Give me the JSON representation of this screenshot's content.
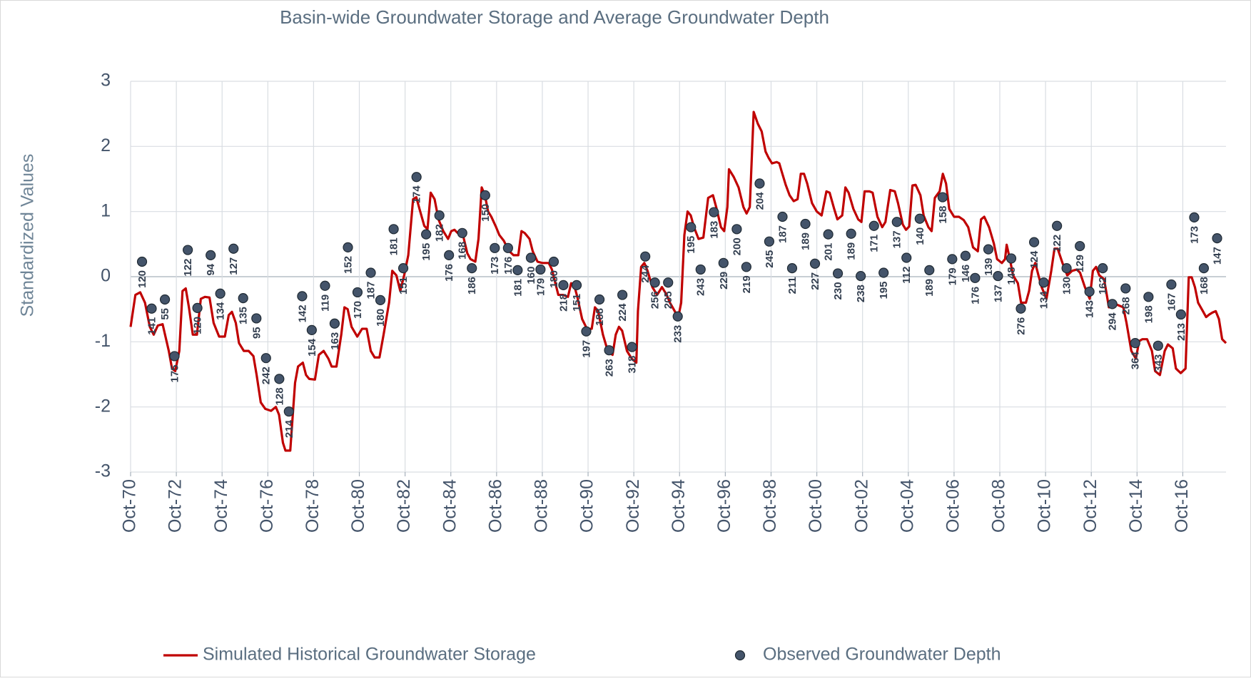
{
  "chart_data": {
    "type": "line",
    "title": "Basin-wide Groundwater Storage and Average Groundwater Depth",
    "y_label": "Standardized Values",
    "xlim": [
      1970.75,
      2018.64
    ],
    "xticks": [
      {
        "value": 1970.75,
        "label": "Oct-70"
      },
      {
        "value": 1972.75,
        "label": "Oct-72"
      },
      {
        "value": 1974.75,
        "label": "Oct-74"
      },
      {
        "value": 1976.75,
        "label": "Oct-76"
      },
      {
        "value": 1978.75,
        "label": "Oct-78"
      },
      {
        "value": 1980.75,
        "label": "Oct-80"
      },
      {
        "value": 1982.75,
        "label": "Oct-82"
      },
      {
        "value": 1984.75,
        "label": "Oct-84"
      },
      {
        "value": 1986.75,
        "label": "Oct-86"
      },
      {
        "value": 1988.75,
        "label": "Oct-88"
      },
      {
        "value": 1990.75,
        "label": "Oct-90"
      },
      {
        "value": 1992.75,
        "label": "Oct-92"
      },
      {
        "value": 1994.75,
        "label": "Oct-94"
      },
      {
        "value": 1996.75,
        "label": "Oct-96"
      },
      {
        "value": 1998.75,
        "label": "Oct-98"
      },
      {
        "value": 2000.75,
        "label": "Oct-00"
      },
      {
        "value": 2002.75,
        "label": "Oct-02"
      },
      {
        "value": 2004.75,
        "label": "Oct-04"
      },
      {
        "value": 2006.75,
        "label": "Oct-06"
      },
      {
        "value": 2008.75,
        "label": "Oct-08"
      },
      {
        "value": 2010.75,
        "label": "Oct-10"
      },
      {
        "value": 2012.75,
        "label": "Oct-12"
      },
      {
        "value": 2014.75,
        "label": "Oct-14"
      },
      {
        "value": 2016.75,
        "label": "Oct-16"
      }
    ],
    "ylim": [
      -3,
      3
    ],
    "yticks": [
      -3,
      -2,
      -1,
      0,
      1,
      2,
      3
    ],
    "grid": true,
    "legend": "bottom",
    "series": [
      {
        "name": "Simulated Historical Groundwater Storage",
        "type": "line",
        "color": "#c00000",
        "x": [
          1970.75,
          1970.96,
          1971.17,
          1971.38,
          1971.59,
          1971.76,
          1971.94,
          1972.15,
          1972.42,
          1972.56,
          1972.7,
          1972.88,
          1973.02,
          1973.16,
          1973.3,
          1973.47,
          1973.65,
          1973.82,
          1974.0,
          1974.2,
          1974.38,
          1974.62,
          1974.87,
          1975.04,
          1975.18,
          1975.35,
          1975.49,
          1975.7,
          1975.91,
          1976.12,
          1976.26,
          1976.44,
          1976.64,
          1976.89,
          1977.1,
          1977.24,
          1977.41,
          1977.52,
          1977.73,
          1977.94,
          1978.07,
          1978.28,
          1978.42,
          1978.56,
          1978.81,
          1978.98,
          1979.19,
          1979.4,
          1979.54,
          1979.75,
          1979.96,
          1980.1,
          1980.24,
          1980.41,
          1980.66,
          1980.87,
          1981.07,
          1981.25,
          1981.42,
          1981.63,
          1981.81,
          1982.05,
          1982.19,
          1982.37,
          1982.54,
          1982.71,
          1982.89,
          1983.1,
          1983.24,
          1983.38,
          1983.59,
          1983.73,
          1983.87,
          1984.04,
          1984.21,
          1984.42,
          1984.63,
          1984.77,
          1984.91,
          1985.05,
          1985.26,
          1985.47,
          1985.61,
          1985.82,
          1985.96,
          1986.1,
          1986.24,
          1986.38,
          1986.52,
          1986.73,
          1986.87,
          1987.07,
          1987.28,
          1987.49,
          1987.7,
          1987.84,
          1987.98,
          1988.19,
          1988.33,
          1988.54,
          1988.75,
          1989.03,
          1989.17,
          1989.45,
          1989.66,
          1989.87,
          1990.01,
          1990.14,
          1990.28,
          1990.49,
          1990.7,
          1990.91,
          1991.05,
          1991.19,
          1991.4,
          1991.61,
          1991.82,
          1991.96,
          1992.1,
          1992.24,
          1992.45,
          1992.66,
          1992.86,
          1992.93,
          1993.07,
          1993.21,
          1993.35,
          1993.56,
          1993.77,
          1993.98,
          1994.19,
          1994.33,
          1994.54,
          1994.68,
          1994.82,
          1994.96,
          1995.1,
          1995.24,
          1995.38,
          1995.58,
          1995.79,
          1996.0,
          1996.21,
          1996.35,
          1996.56,
          1996.7,
          1996.84,
          1996.91,
          1997.12,
          1997.33,
          1997.54,
          1997.68,
          1997.82,
          1997.99,
          1998.17,
          1998.34,
          1998.51,
          1998.65,
          1998.79,
          1999.0,
          1999.11,
          1999.21,
          1999.39,
          1999.56,
          1999.74,
          1999.91,
          2000.05,
          2000.19,
          2000.33,
          2000.54,
          2000.75,
          2000.96,
          2001.17,
          2001.31,
          2001.51,
          2001.65,
          2001.86,
          2002.0,
          2002.14,
          2002.35,
          2002.56,
          2002.7,
          2002.84,
          2003.05,
          2003.19,
          2003.4,
          2003.61,
          2003.75,
          2003.96,
          2004.16,
          2004.3,
          2004.51,
          2004.65,
          2004.79,
          2004.93,
          2005.07,
          2005.28,
          2005.42,
          2005.63,
          2005.77,
          2005.91,
          2006.12,
          2006.26,
          2006.4,
          2006.54,
          2006.75,
          2006.96,
          2007.17,
          2007.37,
          2007.58,
          2007.79,
          2007.93,
          2008.07,
          2008.28,
          2008.49,
          2008.63,
          2008.84,
          2008.98,
          2009.05,
          2009.19,
          2009.33,
          2009.54,
          2009.68,
          2009.89,
          2010.03,
          2010.16,
          2010.3,
          2010.44,
          2010.58,
          2010.79,
          2011.0,
          2011.14,
          2011.28,
          2011.49,
          2011.7,
          2011.91,
          2012.12,
          2012.26,
          2012.47,
          2012.68,
          2012.82,
          2012.96,
          2013.1,
          2013.31,
          2013.52,
          2013.73,
          2013.87,
          2014.15,
          2014.29,
          2014.5,
          2014.7,
          2014.84,
          2014.98,
          2015.19,
          2015.4,
          2015.54,
          2015.75,
          2015.96,
          2016.1,
          2016.31,
          2016.45,
          2016.66,
          2016.87,
          2017.01,
          2017.14,
          2017.28,
          2017.42,
          2017.63,
          2017.77,
          2017.91,
          2018.05,
          2018.19,
          2018.33,
          2018.47,
          2018.64
        ],
        "values": [
          -0.77,
          -0.28,
          -0.24,
          -0.4,
          -0.77,
          -0.89,
          -0.75,
          -0.73,
          -1.14,
          -1.41,
          -1.45,
          -1.14,
          -0.22,
          -0.18,
          -0.47,
          -0.89,
          -0.89,
          -0.34,
          -0.31,
          -0.32,
          -0.71,
          -0.92,
          -0.92,
          -0.59,
          -0.54,
          -0.71,
          -1.02,
          -1.14,
          -1.14,
          -1.22,
          -1.51,
          -1.93,
          -2.03,
          -2.06,
          -2.0,
          -2.12,
          -2.55,
          -2.67,
          -2.67,
          -1.63,
          -1.38,
          -1.32,
          -1.51,
          -1.57,
          -1.58,
          -1.2,
          -1.14,
          -1.26,
          -1.38,
          -1.38,
          -0.89,
          -0.47,
          -0.5,
          -0.77,
          -0.92,
          -0.8,
          -0.8,
          -1.14,
          -1.24,
          -1.24,
          -0.89,
          -0.4,
          0.09,
          0.02,
          -0.22,
          0.02,
          0.33,
          1.19,
          1.22,
          1.04,
          0.78,
          0.73,
          1.29,
          1.19,
          0.88,
          0.7,
          0.58,
          0.7,
          0.72,
          0.67,
          0.67,
          0.36,
          0.27,
          0.23,
          0.58,
          1.37,
          1.25,
          1.0,
          0.92,
          0.76,
          0.64,
          0.55,
          0.4,
          0.33,
          0.33,
          0.7,
          0.67,
          0.58,
          0.39,
          0.23,
          0.21,
          0.21,
          0.11,
          -0.28,
          -0.28,
          -0.31,
          -0.1,
          -0.13,
          -0.31,
          -0.65,
          -0.8,
          -0.8,
          -0.47,
          -0.53,
          -0.89,
          -1.14,
          -1.2,
          -0.89,
          -0.77,
          -0.83,
          -1.14,
          -1.26,
          -1.32,
          -0.53,
          0.15,
          0.21,
          0.09,
          -0.16,
          -0.28,
          -0.16,
          -0.28,
          -0.4,
          -0.53,
          -0.65,
          -0.4,
          0.64,
          1.0,
          0.94,
          0.76,
          0.58,
          0.6,
          1.21,
          1.25,
          1.07,
          0.76,
          0.7,
          1.07,
          1.65,
          1.53,
          1.37,
          1.07,
          0.97,
          1.07,
          2.53,
          2.35,
          2.23,
          1.92,
          1.82,
          1.74,
          1.76,
          1.74,
          1.62,
          1.41,
          1.25,
          1.16,
          1.19,
          1.58,
          1.58,
          1.43,
          1.13,
          1.0,
          0.94,
          1.31,
          1.29,
          1.04,
          0.88,
          0.94,
          1.37,
          1.29,
          1.04,
          0.88,
          0.84,
          1.31,
          1.31,
          1.29,
          0.92,
          0.76,
          0.84,
          1.33,
          1.31,
          1.13,
          0.8,
          0.72,
          0.77,
          1.4,
          1.41,
          1.25,
          0.94,
          0.76,
          0.7,
          1.21,
          1.31,
          1.58,
          1.43,
          1.04,
          0.92,
          0.92,
          0.87,
          0.76,
          0.45,
          0.39,
          0.88,
          0.92,
          0.76,
          0.51,
          0.27,
          0.21,
          0.27,
          0.49,
          0.27,
          0.02,
          -0.1,
          -0.4,
          -0.4,
          -0.22,
          0.09,
          0.21,
          0.02,
          -0.16,
          -0.34,
          0.09,
          0.43,
          0.43,
          0.21,
          0.02,
          0.09,
          0.11,
          0.06,
          -0.16,
          -0.34,
          0.09,
          0.15,
          0.02,
          -0.04,
          -0.47,
          -0.47,
          -0.43,
          -0.47,
          -0.71,
          -1.14,
          -1.26,
          -0.99,
          -0.96,
          -0.96,
          -1.14,
          -1.45,
          -1.51,
          -1.14,
          -1.04,
          -1.1,
          -1.41,
          -1.48,
          -1.41,
          -0.01,
          -0.01,
          -0.16,
          -0.4,
          -0.53,
          -0.62,
          -0.58,
          -0.55,
          -0.53,
          -0.65,
          -0.96,
          -1.02
        ]
      },
      {
        "name": "Observed Groundwater Depth",
        "type": "scatter",
        "color": "#44546a",
        "x": [
          1971.25,
          1971.67,
          1972.25,
          1972.67,
          1973.25,
          1973.67,
          1974.25,
          1974.67,
          1975.25,
          1975.67,
          1976.25,
          1976.67,
          1977.25,
          1977.67,
          1978.25,
          1978.67,
          1979.25,
          1979.67,
          1980.25,
          1980.67,
          1981.25,
          1981.67,
          1982.25,
          1982.67,
          1983.25,
          1983.67,
          1984.25,
          1984.67,
          1985.25,
          1985.67,
          1986.25,
          1986.67,
          1987.25,
          1987.67,
          1988.25,
          1988.67,
          1989.25,
          1989.67,
          1990.25,
          1990.67,
          1991.25,
          1991.67,
          1992.25,
          1992.67,
          1993.25,
          1993.67,
          1994.25,
          1994.67,
          1995.25,
          1995.67,
          1996.25,
          1996.67,
          1997.25,
          1997.67,
          1998.25,
          1998.67,
          1999.25,
          1999.67,
          2000.25,
          2000.67,
          2001.25,
          2001.67,
          2002.25,
          2002.67,
          2003.25,
          2003.67,
          2004.25,
          2004.67,
          2005.25,
          2005.67,
          2006.25,
          2006.67,
          2007.25,
          2007.67,
          2008.25,
          2008.67,
          2009.25,
          2009.67,
          2010.25,
          2010.67,
          2011.25,
          2011.67,
          2012.25,
          2012.67,
          2013.25,
          2013.67,
          2014.25,
          2014.67,
          2015.25,
          2015.67,
          2016.25,
          2016.67,
          2017.25,
          2017.67,
          2018.25
        ],
        "values": [
          0.23,
          -0.49,
          -0.35,
          -1.22,
          0.41,
          -0.48,
          0.33,
          -0.26,
          0.43,
          -0.33,
          -0.64,
          -1.25,
          -1.57,
          -2.07,
          -0.3,
          -0.82,
          -0.14,
          -0.72,
          0.45,
          -0.24,
          0.06,
          -0.36,
          0.73,
          0.13,
          1.53,
          0.65,
          0.94,
          0.33,
          0.67,
          0.13,
          1.25,
          0.44,
          0.44,
          0.1,
          0.29,
          0.11,
          0.23,
          -0.13,
          -0.13,
          -0.84,
          -0.35,
          -1.13,
          -0.28,
          -1.08,
          0.31,
          -0.09,
          -0.09,
          -0.61,
          0.76,
          0.11,
          0.99,
          0.21,
          0.73,
          0.15,
          1.43,
          0.54,
          0.92,
          0.13,
          0.81,
          0.2,
          0.65,
          0.05,
          0.66,
          0.01,
          0.78,
          0.06,
          0.84,
          0.29,
          0.89,
          0.1,
          1.22,
          0.27,
          0.32,
          -0.02,
          0.42,
          0.01,
          0.28,
          -0.49,
          0.53,
          -0.09,
          0.78,
          0.13,
          0.47,
          -0.23,
          0.13,
          -0.42,
          -0.18,
          -1.02,
          -0.31,
          -1.06,
          -0.12,
          -0.58,
          0.91,
          0.13,
          0.59
        ],
        "data_labels": [
          120,
          141,
          55,
          175,
          122,
          120,
          94,
          134,
          127,
          135,
          95,
          242,
          128,
          214,
          142,
          154,
          119,
          163,
          152,
          170,
          187,
          180,
          181,
          151,
          174,
          195,
          182,
          176,
          168,
          186,
          150,
          173,
          176,
          181,
          160,
          179,
          180,
          218,
          151,
          197,
          188,
          263,
          224,
          318,
          244,
          256,
          205,
          233,
          195,
          243,
          183,
          229,
          200,
          219,
          204,
          245,
          187,
          211,
          189,
          227,
          201,
          230,
          189,
          238,
          171,
          195,
          137,
          112,
          140,
          189,
          158,
          179,
          146,
          176,
          139,
          137,
          148,
          276,
          124,
          134,
          122,
          130,
          129,
          143,
          162,
          294,
          268,
          364,
          198,
          343,
          167,
          213,
          173,
          168,
          147
        ]
      }
    ]
  }
}
